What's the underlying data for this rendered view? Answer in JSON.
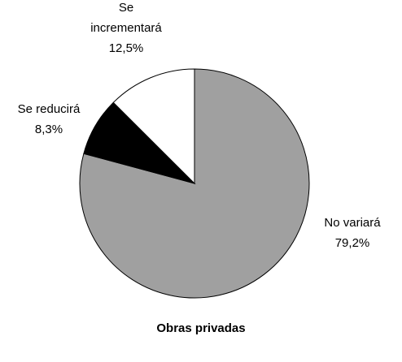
{
  "chart_data": {
    "type": "pie",
    "title": "Obras privadas",
    "categories": [
      "No variará",
      "Se reducirá",
      "Se incrementará"
    ],
    "values": [
      79.2,
      8.3,
      12.5
    ],
    "value_labels": [
      "79,2%",
      "8,3%",
      "12,5%"
    ],
    "colors": [
      "#a0a0a0",
      "#000000",
      "#ffffff"
    ]
  }
}
